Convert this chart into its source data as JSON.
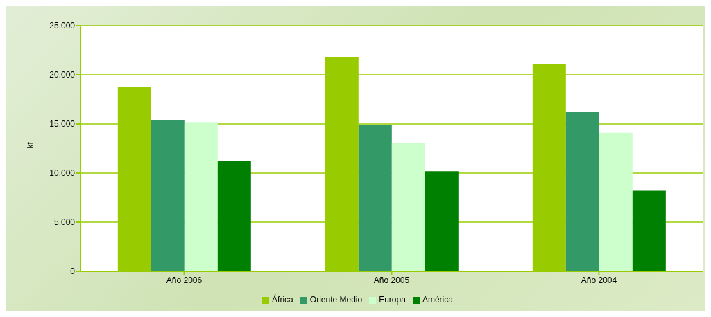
{
  "chart_data": {
    "type": "bar",
    "ylabel": "kt",
    "categories": [
      "Año 2006",
      "Año 2005",
      "Año 2004"
    ],
    "series": [
      {
        "name": "África",
        "color": "#99cc00",
        "values": [
          18800,
          21800,
          21100
        ]
      },
      {
        "name": "Oriente Medio",
        "color": "#339966",
        "values": [
          15400,
          14900,
          16200
        ]
      },
      {
        "name": "Europa",
        "color": "#ccffcc",
        "values": [
          15200,
          13100,
          14100
        ]
      },
      {
        "name": "América",
        "color": "#008000",
        "values": [
          11200,
          10200,
          8200
        ]
      }
    ],
    "ylim": [
      0,
      25000
    ],
    "yticks": [
      0,
      {
        "value": 5000,
        "label": "5.000"
      },
      {
        "value": 10000,
        "label": "10.000"
      },
      {
        "value": 15000,
        "label": "15.000"
      },
      {
        "value": 20000,
        "label": "20.000"
      },
      {
        "value": 25000,
        "label": "25.000"
      }
    ],
    "grid": "y",
    "legend": "bottom"
  }
}
